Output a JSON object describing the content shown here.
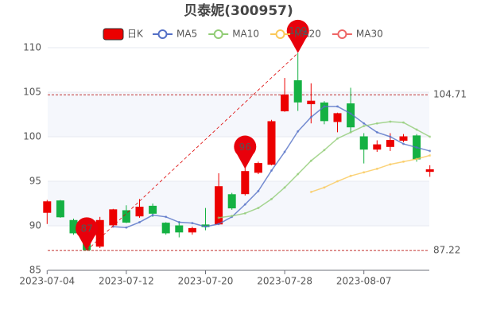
{
  "chart_data": {
    "type": "candlestick",
    "title": "贝泰妮(300957)",
    "categories": [
      "2023-07-04",
      null,
      null,
      null,
      null,
      null,
      "2023-07-12",
      null,
      null,
      null,
      null,
      null,
      "2023-07-20",
      null,
      null,
      null,
      null,
      null,
      "2023-07-28",
      null,
      null,
      null,
      null,
      null,
      "2023-08-07",
      null,
      null,
      null,
      null,
      null
    ],
    "candles": {
      "name": "日K",
      "up_color": "#ec0000",
      "down_color": "#14b143",
      "open": [
        91.5,
        92.8,
        90.6,
        88.4,
        87.7,
        90.1,
        91.7,
        91.1,
        92.2,
        90.3,
        90.0,
        89.3,
        90.1,
        90.2,
        93.5,
        93.6,
        96.0,
        96.9,
        102.9,
        106.3,
        103.7,
        103.8,
        101.7,
        103.7,
        100.0,
        98.6,
        98.9,
        99.6,
        100.1,
        96.1
      ],
      "close": [
        92.7,
        91.0,
        89.2,
        87.3,
        90.6,
        91.8,
        90.4,
        92.1,
        91.4,
        89.2,
        89.3,
        89.7,
        89.9,
        94.4,
        92.0,
        96.1,
        97.0,
        101.7,
        104.7,
        103.9,
        104.0,
        101.8,
        102.6,
        101.1,
        98.6,
        99.1,
        99.6,
        100.0,
        97.5,
        96.3
      ],
      "high": [
        92.9,
        92.9,
        90.8,
        88.6,
        91.0,
        91.9,
        92.3,
        93.0,
        92.5,
        90.4,
        90.5,
        89.9,
        92.0,
        95.9,
        93.7,
        96.8,
        97.2,
        101.9,
        106.6,
        109.4,
        106.0,
        104.0,
        102.7,
        105.5,
        100.4,
        99.6,
        100.4,
        100.3,
        100.3,
        96.8
      ],
      "low": [
        90.2,
        90.9,
        89.0,
        87.22,
        87.5,
        89.9,
        90.3,
        90.9,
        91.0,
        89.0,
        88.7,
        89.0,
        89.5,
        90.1,
        91.8,
        93.4,
        95.8,
        96.8,
        102.8,
        102.9,
        101.5,
        101.4,
        100.5,
        100.5,
        97.0,
        98.3,
        98.4,
        99.4,
        97.2,
        95.5
      ]
    },
    "series": [
      {
        "name": "MA5",
        "color": "#5470c6",
        "values": [
          null,
          null,
          null,
          null,
          null,
          89.9,
          89.8,
          90.4,
          91.2,
          91.0,
          90.4,
          90.3,
          89.9,
          90.2,
          91.0,
          92.4,
          93.9,
          96.2,
          98.3,
          100.6,
          102.2,
          103.4,
          103.4,
          102.6,
          101.5,
          100.5,
          100.0,
          99.2,
          98.8,
          98.4
        ]
      },
      {
        "name": "MA10",
        "color": "#91cc75",
        "values": [
          null,
          null,
          null,
          null,
          null,
          null,
          null,
          null,
          null,
          null,
          null,
          null,
          null,
          90.9,
          91.1,
          91.4,
          92.0,
          93.0,
          94.3,
          95.8,
          97.3,
          98.5,
          99.8,
          100.5,
          101.2,
          101.5,
          101.7,
          101.6,
          100.8,
          100.0
        ]
      },
      {
        "name": "MA20",
        "color": "#fac858",
        "values": [
          null,
          null,
          null,
          null,
          null,
          null,
          null,
          null,
          null,
          null,
          null,
          null,
          null,
          null,
          null,
          null,
          null,
          null,
          null,
          null,
          93.8,
          94.3,
          95.0,
          95.6,
          96.0,
          96.4,
          96.9,
          97.2,
          97.5,
          97.9
        ]
      },
      {
        "name": "MA30",
        "color": "#ee6666",
        "values": [
          null,
          null,
          null,
          null,
          null,
          null,
          null,
          null,
          null,
          null,
          null,
          null,
          null,
          null,
          null,
          null,
          null,
          null,
          null,
          null,
          null,
          null,
          null,
          null,
          null,
          null,
          null,
          null,
          null,
          null
        ]
      }
    ],
    "pins": [
      {
        "label": "87",
        "index": 3,
        "value": 87.22
      },
      {
        "label": "96",
        "index": 15,
        "value": 96.4
      },
      {
        "label": "109",
        "index": 19,
        "value": 109.4
      }
    ],
    "mark_lines": [
      104.71,
      87.22
    ],
    "ylim": [
      85,
      110
    ],
    "yticks": [
      85,
      90,
      95,
      100,
      105,
      110
    ],
    "grid": true
  }
}
